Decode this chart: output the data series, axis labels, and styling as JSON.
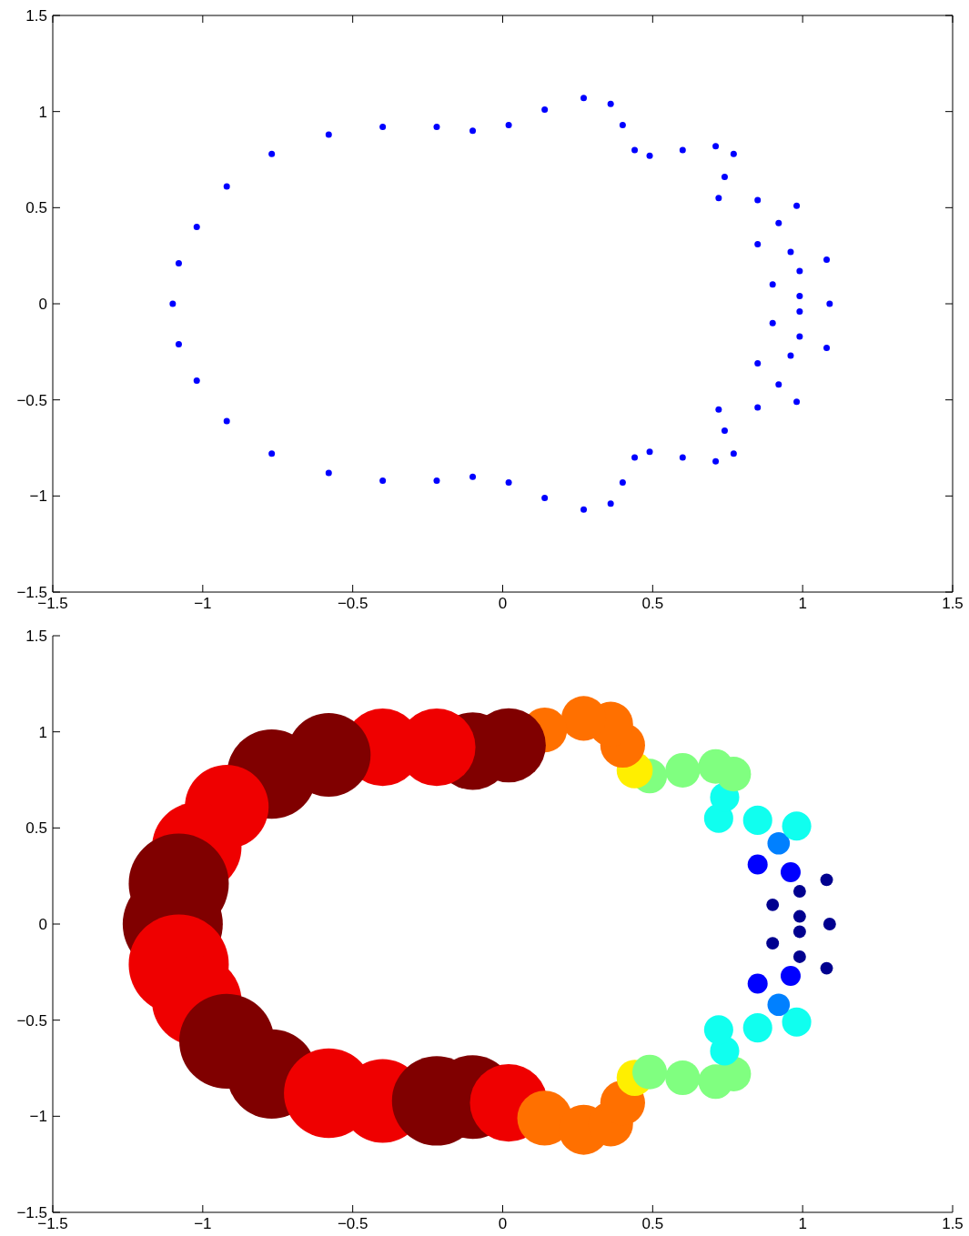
{
  "chart_data": [
    {
      "type": "scatter",
      "color": "#0000ff",
      "marker": "circle",
      "xlim": [
        -1.5,
        1.5
      ],
      "ylim": [
        -1.5,
        1.5
      ],
      "xticks": [
        -1.5,
        -1,
        -0.5,
        0,
        0.5,
        1,
        1.5
      ],
      "yticks": [
        -1.5,
        -1,
        -0.5,
        0,
        0.5,
        1,
        1.5
      ],
      "x": [
        1.09,
        0.99,
        0.9,
        0.99,
        1.08,
        0.96,
        0.85,
        0.92,
        0.98,
        0.85,
        0.72,
        0.74,
        0.77,
        0.71,
        0.6,
        0.49,
        0.44,
        0.4,
        0.36,
        0.27,
        0.14,
        0.02,
        -0.1,
        -0.22,
        -0.4,
        -0.58,
        -0.77,
        -0.92,
        -1.02,
        -1.08,
        -1.1,
        -1.08,
        -1.02,
        -0.92,
        -0.77,
        -0.58,
        -0.4,
        -0.22,
        -0.1,
        0.02,
        0.14,
        0.27,
        0.36,
        0.4,
        0.44,
        0.49,
        0.6,
        0.71,
        0.77,
        0.74,
        0.72,
        0.85,
        0.98,
        0.92,
        0.85,
        0.96,
        1.08,
        0.99,
        0.9,
        0.99
      ],
      "values": [
        0,
        0.04,
        0.1,
        0.17,
        0.23,
        0.27,
        0.31,
        0.42,
        0.51,
        0.54,
        0.55,
        0.66,
        0.78,
        0.82,
        0.8,
        0.77,
        0.8,
        0.93,
        1.04,
        1.07,
        1.01,
        0.93,
        0.9,
        0.92,
        0.92,
        0.88,
        0.78,
        0.61,
        0.4,
        0.21,
        0,
        -0.21,
        -0.4,
        -0.61,
        -0.78,
        -0.88,
        -0.92,
        -0.92,
        -0.9,
        -0.93,
        -1.01,
        -1.07,
        -1.04,
        -0.93,
        -0.8,
        -0.77,
        -0.8,
        -0.82,
        -0.78,
        -0.66,
        -0.55,
        -0.54,
        -0.51,
        -0.42,
        -0.31,
        -0.27,
        -0.23,
        -0.17,
        -0.1,
        -0.04
      ]
    },
    {
      "type": "bubble",
      "xlim": [
        -1.5,
        1.5
      ],
      "ylim": [
        -1.5,
        1.5
      ],
      "xticks": [
        -1.5,
        -1,
        -0.5,
        0,
        0.5,
        1,
        1.5
      ],
      "yticks": [
        -1.5,
        -1,
        -0.5,
        0,
        0.5,
        1,
        1.5
      ],
      "x": [
        1.09,
        0.99,
        0.9,
        0.99,
        1.08,
        0.96,
        0.85,
        0.92,
        0.98,
        0.85,
        0.72,
        0.74,
        0.77,
        0.71,
        0.6,
        0.49,
        0.44,
        0.4,
        0.36,
        0.27,
        0.14,
        0.02,
        -0.1,
        -0.22,
        -0.4,
        -0.58,
        -0.77,
        -0.92,
        -1.02,
        -1.08,
        -1.1,
        -1.08,
        -1.02,
        -0.92,
        -0.77,
        -0.58,
        -0.4,
        -0.22,
        -0.1,
        0.02,
        0.14,
        0.27,
        0.36,
        0.4,
        0.44,
        0.49,
        0.6,
        0.71,
        0.77,
        0.74,
        0.72,
        0.85,
        0.98,
        0.92,
        0.85,
        0.96,
        1.08,
        0.99,
        0.9,
        0.99
      ],
      "values": [
        0,
        0.04,
        0.1,
        0.17,
        0.23,
        0.27,
        0.31,
        0.42,
        0.51,
        0.54,
        0.55,
        0.66,
        0.78,
        0.82,
        0.8,
        0.77,
        0.8,
        0.93,
        1.04,
        1.07,
        1.01,
        0.93,
        0.9,
        0.92,
        0.92,
        0.88,
        0.78,
        0.61,
        0.4,
        0.21,
        0,
        -0.21,
        -0.4,
        -0.61,
        -0.78,
        -0.88,
        -0.92,
        -0.92,
        -0.9,
        -0.93,
        -1.01,
        -1.07,
        -1.04,
        -0.93,
        -0.8,
        -0.77,
        -0.8,
        -0.82,
        -0.78,
        -0.66,
        -0.55,
        -0.54,
        -0.51,
        -0.42,
        -0.31,
        -0.27,
        -0.23,
        -0.17,
        -0.1,
        -0.04
      ],
      "sizes": [
        0.016,
        0.016,
        0.016,
        0.016,
        0.016,
        0.04,
        0.04,
        0.05,
        0.085,
        0.085,
        0.085,
        0.085,
        0.12,
        0.12,
        0.12,
        0.12,
        0.13,
        0.2,
        0.2,
        0.2,
        0.2,
        0.55,
        0.6,
        0.6,
        0.6,
        0.7,
        0.8,
        0.7,
        0.8,
        1,
        1,
        1,
        0.8,
        0.9,
        0.8,
        0.8,
        0.7,
        0.8,
        0.7,
        0.6,
        0.3,
        0.25,
        0.2,
        0.2,
        0.13,
        0.12,
        0.12,
        0.12,
        0.12,
        0.085,
        0.085,
        0.085,
        0.085,
        0.05,
        0.04,
        0.04,
        0.016,
        0.016,
        0.016,
        0.016
      ],
      "colors": [
        "#00008f",
        "#00008f",
        "#00008f",
        "#00008f",
        "#00008f",
        "#0000ff",
        "#0000ff",
        "#0080ff",
        "#10ffef",
        "#10ffef",
        "#10ffef",
        "#10ffef",
        "#80ff80",
        "#80ff80",
        "#80ff80",
        "#80ff80",
        "#ffef00",
        "#ff7000",
        "#ff7000",
        "#ff7000",
        "#ff7000",
        "#800000",
        "#800000",
        "#ef0000",
        "#ef0000",
        "#800000",
        "#800000",
        "#ef0000",
        "#ef0000",
        "#800000",
        "#800000",
        "#ef0000",
        "#ef0000",
        "#800000",
        "#800000",
        "#ef0000",
        "#ef0000",
        "#800000",
        "#800000",
        "#ef0000",
        "#ff7000",
        "#ff7000",
        "#ff7000",
        "#ff7000",
        "#ffef00",
        "#80ff80",
        "#80ff80",
        "#80ff80",
        "#80ff80",
        "#10ffef",
        "#10ffef",
        "#10ffef",
        "#10ffef",
        "#0080ff",
        "#0000ff",
        "#0000ff",
        "#00008f",
        "#00008f",
        "#00008f",
        "#00008f"
      ]
    }
  ]
}
